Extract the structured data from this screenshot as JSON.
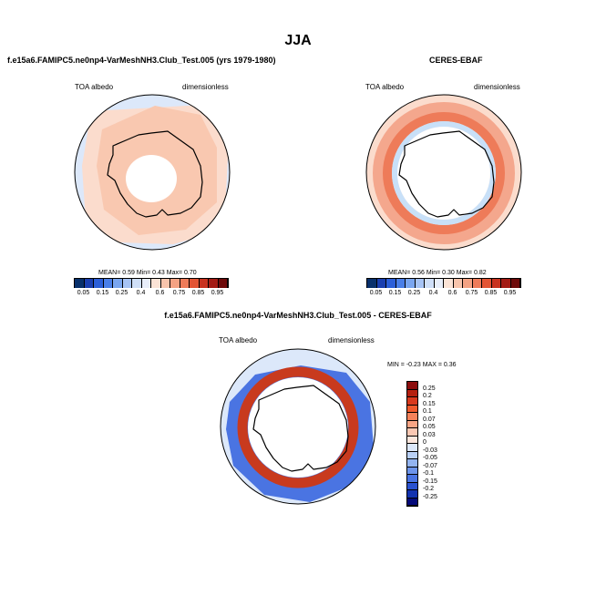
{
  "figure": {
    "title": "JJA",
    "background": "#ffffff"
  },
  "panels": [
    {
      "id": "model",
      "subtitle": "f.e15a6.FAMIPC5.ne0np4-VarMeshNH3.Club_Test.005 (yrs 1979-1980)",
      "left_label": "TOA albedo",
      "right_label": "dimensionless",
      "stats": {
        "mean_label": "MEAN=",
        "mean": "0.59",
        "min_label": "Min=",
        "min": "0.43",
        "max_label": "Max=",
        "max": "0.70"
      }
    },
    {
      "id": "obs",
      "subtitle": "CERES-EBAF",
      "left_label": "TOA albedo",
      "right_label": "dimensionless",
      "stats": {
        "mean_label": "MEAN=",
        "mean": "0.56",
        "min_label": "Min=",
        "min": "0.30",
        "max_label": "Max=",
        "max": "0.82"
      }
    },
    {
      "id": "diff",
      "subtitle": "f.e15a6.FAMIPC5.ne0np4-VarMeshNH3.Club_Test.005 - CERES-EBAF",
      "left_label": "TOA albedo",
      "right_label": "dimensionless",
      "stats": {
        "min_label": "MIN =",
        "min": "-0.23",
        "max_label": "MAX =",
        "max": "0.36"
      }
    }
  ],
  "colorbar_abs": {
    "ticks": [
      "0.05",
      "0.15",
      "0.25",
      "0.4",
      "0.6",
      "0.75",
      "0.85",
      "0.95"
    ],
    "colors": [
      "#08306b",
      "#1a3fb0",
      "#2c5fd8",
      "#4a7fe8",
      "#7aa6f0",
      "#a7c4f5",
      "#cfdff8",
      "#e8eefa",
      "#fbe3d6",
      "#f8c4ac",
      "#f4a283",
      "#ee7b59",
      "#e35434",
      "#c8321f",
      "#a31b14",
      "#6d0a0a"
    ]
  },
  "colorbar_diff": {
    "ticks": [
      "0.25",
      "0.2",
      "0.15",
      "0.1",
      "0.07",
      "0.05",
      "0.03",
      "0",
      "-0.03",
      "-0.05",
      "-0.07",
      "-0.1",
      "-0.15",
      "-0.2",
      "-0.25"
    ],
    "colors": [
      "#8c0d0d",
      "#b5200f",
      "#d8391d",
      "#f05a2d",
      "#f5825a",
      "#f8a585",
      "#fbc8b3",
      "#fce6dc",
      "#dce8fa",
      "#b9d0f6",
      "#93b4f0",
      "#6d94ea",
      "#4a74e2",
      "#2a52d0",
      "#1232b0",
      "#050a7a"
    ]
  },
  "map_colors": {
    "land_outline": "#000000",
    "model_ocean": "#f9c8b0",
    "model_outer": "#fbdccd",
    "model_edge": "#dce8fa",
    "model_core": "#ffffff",
    "obs_base": "#fbdccd",
    "obs_ring": "#ee7b59",
    "obs_ring_inner": "#c8e0f8",
    "obs_core": "#ffffff",
    "diff_base": "#dce8fa",
    "diff_blue": "#4a74e2",
    "diff_ring": "#c83a1e",
    "diff_core": "#ffffff"
  }
}
